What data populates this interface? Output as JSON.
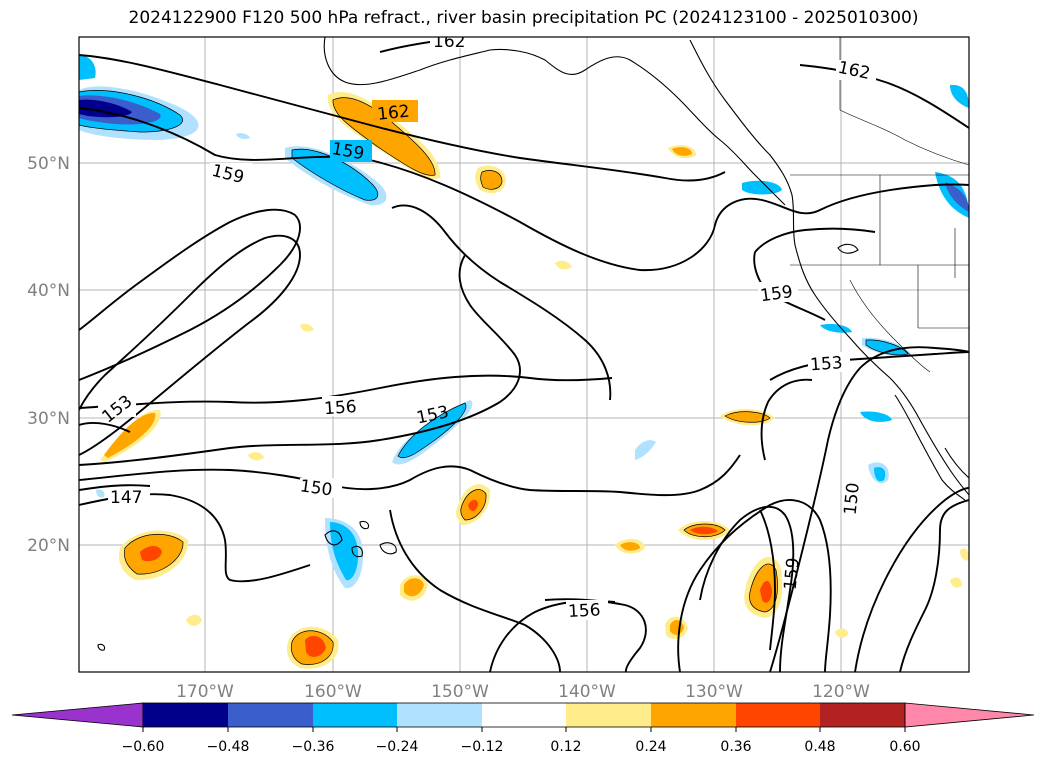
{
  "title": "2024122900 F120 500 hPa refract., river basin precipitation PC (2024123100 - 2025010300)",
  "latitude_labels": [
    "50°N",
    "40°N",
    "30°N",
    "20°N"
  ],
  "longitude_labels": [
    "170°W",
    "160°W",
    "150°W",
    "140°W",
    "130°W",
    "120°W"
  ],
  "contour_labels": [
    "162",
    "162",
    "162",
    "159",
    "159",
    "159",
    "159",
    "156",
    "156",
    "153",
    "153",
    "153",
    "150",
    "150",
    "147"
  ],
  "colorbar": {
    "tick_labels": [
      "−0.60",
      "−0.48",
      "−0.36",
      "−0.24",
      "−0.12",
      "0.12",
      "0.24",
      "0.36",
      "0.48",
      "0.60"
    ],
    "colors": [
      "#9a32cd",
      "#00008b",
      "#3a5fcd",
      "#00bfff",
      "#b0e2ff",
      "#ffffff",
      "#ffec8b",
      "#ffa500",
      "#ff4500",
      "#b22222",
      "#ff88aa"
    ]
  },
  "colors": {
    "contour": "#000000",
    "grid": "#b4b4b4",
    "axis_label": "#808080"
  }
}
